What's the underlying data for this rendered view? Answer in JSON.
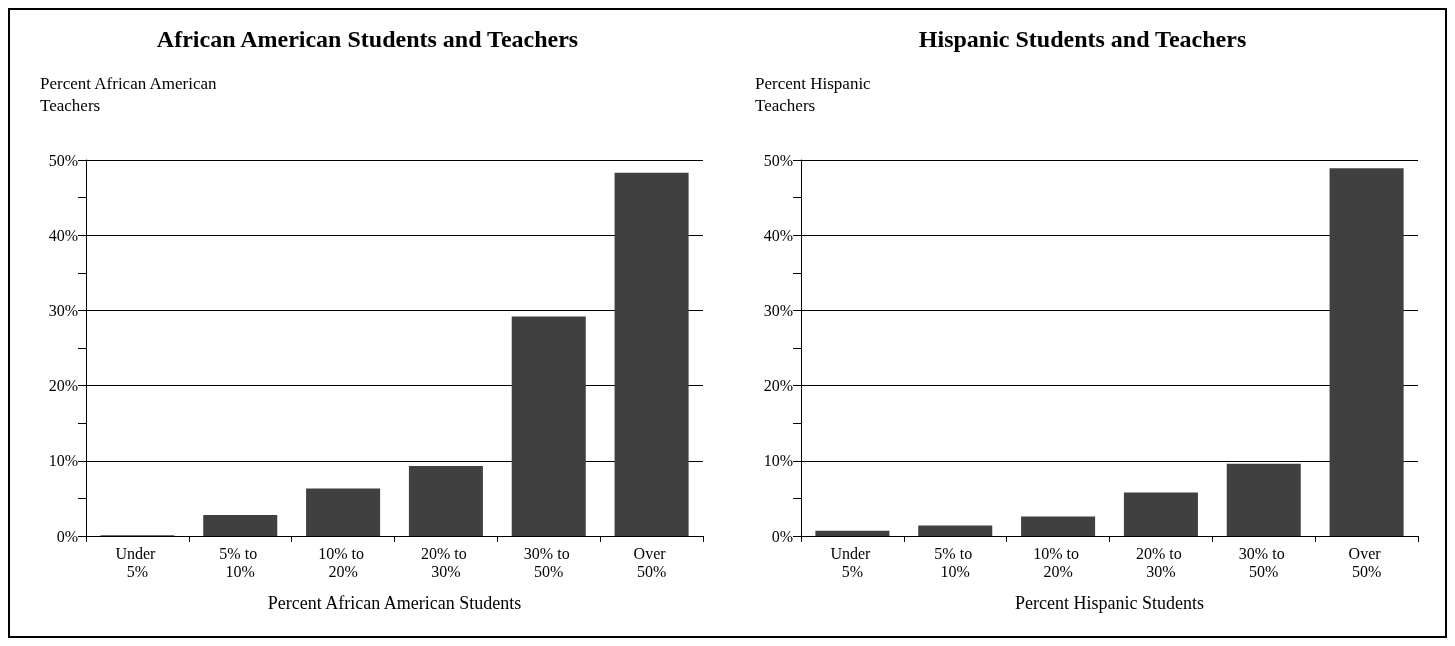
{
  "chart_data": [
    {
      "type": "bar",
      "title": "African American Students and Teachers",
      "ylabel": "Percent African American Teachers",
      "xlabel": "Percent African American Students",
      "categories": [
        "Under 5%",
        "5% to 10%",
        "10% to 20%",
        "20% to 30%",
        "30% to 50%",
        "Over 50%"
      ],
      "values": [
        0.1,
        2.8,
        6.3,
        9.3,
        29.2,
        48.3
      ],
      "color": "#404040",
      "ylim": [
        0,
        50
      ],
      "yticks": [
        {
          "value": 0,
          "label": "0%"
        },
        {
          "value": 5,
          "label": null
        },
        {
          "value": 10,
          "label": "10%"
        },
        {
          "value": 15,
          "label": null
        },
        {
          "value": 20,
          "label": "20%"
        },
        {
          "value": 25,
          "label": null
        },
        {
          "value": 30,
          "label": "30%"
        },
        {
          "value": 35,
          "label": null
        },
        {
          "value": 40,
          "label": "40%"
        },
        {
          "value": 45,
          "label": null
        },
        {
          "value": 50,
          "label": "50%"
        }
      ],
      "grid": "y"
    },
    {
      "type": "bar",
      "title": "Hispanic Students and Teachers",
      "ylabel": "Percent Hispanic Teachers",
      "xlabel": "Percent Hispanic Students",
      "categories": [
        "Under 5%",
        "5% to 10%",
        "10% to 20%",
        "20% to 30%",
        "30% to 50%",
        "Over 50%"
      ],
      "values": [
        0.7,
        1.4,
        2.6,
        5.8,
        9.6,
        48.9
      ],
      "color": "#404040",
      "ylim": [
        0,
        50
      ],
      "yticks": [
        {
          "value": 0,
          "label": "0%"
        },
        {
          "value": 5,
          "label": null
        },
        {
          "value": 10,
          "label": "10%"
        },
        {
          "value": 15,
          "label": null
        },
        {
          "value": 20,
          "label": "20%"
        },
        {
          "value": 25,
          "label": null
        },
        {
          "value": 30,
          "label": "30%"
        },
        {
          "value": 35,
          "label": null
        },
        {
          "value": 40,
          "label": "40%"
        },
        {
          "value": 45,
          "label": null
        },
        {
          "value": 50,
          "label": "50%"
        }
      ],
      "grid": "y"
    }
  ]
}
